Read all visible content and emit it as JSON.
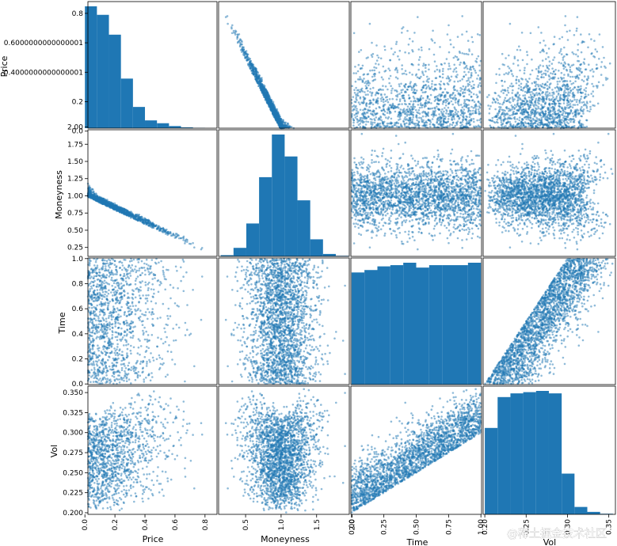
{
  "chart_data": {
    "type": "scatter_matrix",
    "variables": [
      "Price",
      "Moneyness",
      "Time",
      "Vol"
    ],
    "diagonal": "histogram",
    "point_color": "#1f77b4",
    "point_alpha": 0.5,
    "bar_color": "#1f77b4",
    "ranges": {
      "Price": [
        0,
        0.9
      ],
      "Moneyness": [
        0.1,
        2.0
      ],
      "Time": [
        0,
        1.0
      ],
      "Vol": [
        0.2,
        0.36
      ]
    },
    "ticks": {
      "Price_y": [
        0.0,
        0.2,
        0.4,
        0.6,
        0.8
      ],
      "Price_y_labels": [
        "0.0",
        "0.2",
        "0.4000000000000001",
        "0.6000000000000001",
        "0.8"
      ],
      "Moneyness_y": [
        0.25,
        0.5,
        0.75,
        1.0,
        1.25,
        1.5,
        1.75,
        2.0
      ],
      "Moneyness_y_labels": [
        "0.25",
        "0.50",
        "0.75",
        "1.00",
        "1.25",
        "1.50",
        "1.75",
        "2.00"
      ],
      "Time_y": [
        0.0,
        0.2,
        0.4,
        0.6,
        0.8,
        1.0
      ],
      "Time_y_labels": [
        "0.0",
        "0.2",
        "0.4",
        "0.6",
        "0.8",
        "1.0"
      ],
      "Vol_y": [
        0.2,
        0.225,
        0.25,
        0.275,
        0.3,
        0.325,
        0.35
      ],
      "Vol_y_labels": [
        "0.200",
        "0.225",
        "0.250",
        "0.275",
        "0.300",
        "0.325",
        "0.350"
      ],
      "Price_x": [
        0.0,
        0.2,
        0.4,
        0.6,
        0.8
      ],
      "Price_x_labels": [
        "0.0",
        "0.2",
        "0.4",
        "0.6",
        "0.8"
      ],
      "Moneyness_x": [
        0.5,
        1.0,
        1.5,
        2.0
      ],
      "Moneyness_x_labels": [
        "0.5",
        "1.0",
        "1.5",
        "2.0"
      ],
      "Time_x": [
        0.0,
        0.25,
        0.5,
        0.75,
        1.0
      ],
      "Time_x_labels": [
        "0.00",
        "0.25",
        "0.50",
        "0.75",
        "1.00"
      ],
      "Vol_x": [
        0.2,
        0.25,
        0.3,
        0.35
      ],
      "Vol_x_labels": [
        "0.20",
        "0.25",
        "0.30",
        "0.35"
      ]
    },
    "histograms": {
      "Price": {
        "bins": [
          0.0,
          0.08,
          0.16,
          0.24,
          0.32,
          0.4,
          0.48,
          0.56,
          0.64,
          0.72,
          0.8
        ],
        "heights": [
          0.86,
          0.8,
          0.66,
          0.35,
          0.15,
          0.055,
          0.035,
          0.015,
          0.006,
          0.002
        ]
      },
      "Moneyness": {
        "bins": [
          0.15,
          0.33,
          0.51,
          0.69,
          0.87,
          1.05,
          1.23,
          1.41,
          1.59,
          1.77,
          1.95
        ],
        "heights": [
          0.01,
          0.07,
          0.27,
          0.65,
          1.0,
          0.82,
          0.46,
          0.14,
          0.02,
          0.005
        ]
      },
      "Time": {
        "bins": [
          0.0,
          0.1,
          0.2,
          0.3,
          0.4,
          0.5,
          0.6,
          0.7,
          0.8,
          0.9,
          1.0
        ],
        "heights": [
          0.92,
          0.94,
          0.97,
          0.98,
          1.0,
          0.96,
          0.98,
          0.98,
          0.98,
          1.0
        ]
      },
      "Vol": {
        "bins": [
          0.2,
          0.2155,
          0.231,
          0.2465,
          0.262,
          0.2775,
          0.293,
          0.3085,
          0.324,
          0.3395,
          0.355
        ],
        "heights": [
          0.7,
          0.95,
          0.98,
          0.99,
          1.0,
          0.98,
          0.33,
          0.06,
          0.02,
          0.005
        ]
      }
    },
    "watermark": "@稀土掘金技术社区"
  }
}
